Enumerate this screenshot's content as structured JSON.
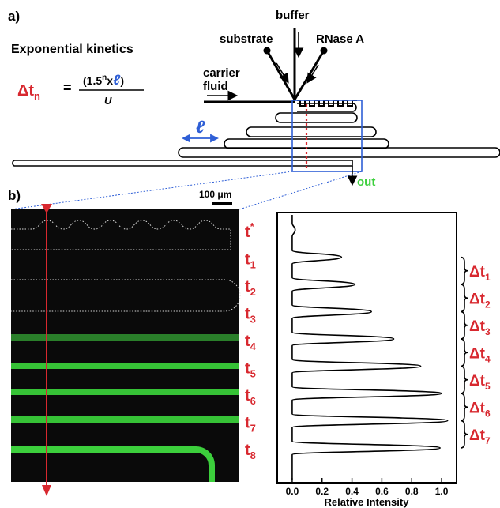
{
  "panel_a": {
    "label": "a)",
    "title": "Exponential kinetics",
    "eq_delta": "Δt",
    "eq_sub": "n",
    "eq_num_open": "(1.5",
    "eq_num_sup": "n",
    "eq_num_x": "x",
    "eq_num_ell": "ℓ",
    "eq_num_close": ")",
    "eq_den": "U",
    "buffer": "buffer",
    "substrate": "substrate",
    "rnase": "RNase A",
    "carrier_1": "carrier",
    "carrier_2": "fluid",
    "ell": "ℓ",
    "out": "out"
  },
  "panel_b": {
    "label": "b)",
    "scale_bar": "100 μm"
  },
  "timepoints": [
    {
      "main": "t",
      "sub": "",
      "sup": "*"
    },
    {
      "main": "t",
      "sub": "1",
      "sup": ""
    },
    {
      "main": "t",
      "sub": "2",
      "sup": ""
    },
    {
      "main": "t",
      "sub": "3",
      "sup": ""
    },
    {
      "main": "t",
      "sub": "4",
      "sup": ""
    },
    {
      "main": "t",
      "sub": "5",
      "sup": ""
    },
    {
      "main": "t",
      "sub": "6",
      "sup": ""
    },
    {
      "main": "t",
      "sub": "7",
      "sup": ""
    },
    {
      "main": "t",
      "sub": "8",
      "sup": ""
    }
  ],
  "intervals": [
    {
      "main": "Δt",
      "sub": "1"
    },
    {
      "main": "Δt",
      "sub": "2"
    },
    {
      "main": "Δt",
      "sub": "3"
    },
    {
      "main": "Δt",
      "sub": "4"
    },
    {
      "main": "Δt",
      "sub": "5"
    },
    {
      "main": "Δt",
      "sub": "6"
    },
    {
      "main": "Δt",
      "sub": "7"
    }
  ],
  "colors": {
    "red": "#d8282f",
    "blue": "#2f5fd6",
    "green": "#3ccf3c",
    "black": "#000000"
  },
  "chart_data": {
    "type": "line",
    "xlabel": "Relative Intensity",
    "xlim": [
      -0.1,
      1.1
    ],
    "ticks": [
      "0.0",
      "0.2",
      "0.4",
      "0.6",
      "0.8",
      "1.0"
    ],
    "peaks": [
      0.02,
      0.33,
      0.42,
      0.53,
      0.68,
      0.86,
      1.0,
      1.04,
      0.99
    ]
  }
}
